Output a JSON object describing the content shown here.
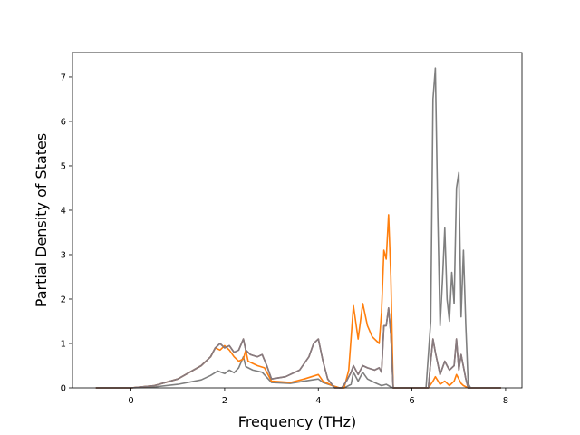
{
  "chart_data": {
    "type": "line",
    "title": "",
    "xlabel": "Frequency (THz)",
    "ylabel": "Partial Density of States",
    "xlim": [
      -1.25,
      8.35
    ],
    "ylim": [
      0,
      7.55
    ],
    "xticks": [
      0,
      2,
      4,
      6,
      8
    ],
    "yticks": [
      0,
      1,
      2,
      3,
      4,
      5,
      6,
      7
    ],
    "grid": false,
    "legend": "none",
    "series": [
      {
        "color": "#7f7f7f",
        "points": [
          [
            -0.75,
            0
          ],
          [
            0,
            0
          ],
          [
            0.5,
            0.02
          ],
          [
            1.0,
            0.08
          ],
          [
            1.5,
            0.18
          ],
          [
            1.7,
            0.28
          ],
          [
            1.85,
            0.38
          ],
          [
            2.0,
            0.32
          ],
          [
            2.1,
            0.4
          ],
          [
            2.2,
            0.34
          ],
          [
            2.3,
            0.45
          ],
          [
            2.4,
            0.7
          ],
          [
            2.45,
            0.48
          ],
          [
            2.6,
            0.4
          ],
          [
            2.8,
            0.35
          ],
          [
            3.0,
            0.12
          ],
          [
            3.4,
            0.1
          ],
          [
            3.7,
            0.15
          ],
          [
            4.0,
            0.2
          ],
          [
            4.1,
            0.12
          ],
          [
            4.3,
            0.05
          ],
          [
            4.45,
            0
          ],
          [
            4.55,
            0
          ],
          [
            4.7,
            0.08
          ],
          [
            4.75,
            0.35
          ],
          [
            4.85,
            0.15
          ],
          [
            4.95,
            0.35
          ],
          [
            5.05,
            0.2
          ],
          [
            5.2,
            0.12
          ],
          [
            5.35,
            0.05
          ],
          [
            5.45,
            0.08
          ],
          [
            5.55,
            0.02
          ],
          [
            5.6,
            0
          ],
          [
            6.3,
            0
          ],
          [
            6.4,
            1.5
          ],
          [
            6.45,
            6.5
          ],
          [
            6.5,
            7.2
          ],
          [
            6.55,
            4.0
          ],
          [
            6.6,
            1.4
          ],
          [
            6.65,
            2.4
          ],
          [
            6.7,
            3.6
          ],
          [
            6.75,
            2.0
          ],
          [
            6.8,
            1.5
          ],
          [
            6.85,
            2.6
          ],
          [
            6.9,
            1.9
          ],
          [
            6.95,
            4.5
          ],
          [
            7.0,
            4.85
          ],
          [
            7.05,
            1.6
          ],
          [
            7.1,
            3.1
          ],
          [
            7.15,
            1.4
          ],
          [
            7.2,
            0.1
          ],
          [
            7.25,
            0
          ],
          [
            7.9,
            0
          ]
        ]
      },
      {
        "color": "#ff7f0e",
        "points": [
          [
            -0.75,
            0
          ],
          [
            0,
            0
          ],
          [
            0.5,
            0.05
          ],
          [
            1.0,
            0.2
          ],
          [
            1.5,
            0.5
          ],
          [
            1.7,
            0.7
          ],
          [
            1.8,
            0.9
          ],
          [
            1.9,
            0.85
          ],
          [
            2.0,
            0.95
          ],
          [
            2.1,
            0.85
          ],
          [
            2.2,
            0.7
          ],
          [
            2.3,
            0.6
          ],
          [
            2.4,
            0.65
          ],
          [
            2.45,
            0.85
          ],
          [
            2.5,
            0.6
          ],
          [
            2.7,
            0.5
          ],
          [
            2.85,
            0.45
          ],
          [
            3.0,
            0.15
          ],
          [
            3.4,
            0.12
          ],
          [
            3.7,
            0.2
          ],
          [
            4.0,
            0.3
          ],
          [
            4.1,
            0.15
          ],
          [
            4.3,
            0.05
          ],
          [
            4.45,
            0
          ],
          [
            4.55,
            0
          ],
          [
            4.65,
            0.4
          ],
          [
            4.75,
            1.85
          ],
          [
            4.85,
            1.1
          ],
          [
            4.95,
            1.9
          ],
          [
            5.05,
            1.4
          ],
          [
            5.15,
            1.15
          ],
          [
            5.25,
            1.05
          ],
          [
            5.3,
            1.0
          ],
          [
            5.35,
            1.7
          ],
          [
            5.4,
            3.1
          ],
          [
            5.45,
            2.9
          ],
          [
            5.5,
            3.9
          ],
          [
            5.55,
            2.5
          ],
          [
            5.6,
            0
          ],
          [
            6.35,
            0
          ],
          [
            6.45,
            0.15
          ],
          [
            6.5,
            0.25
          ],
          [
            6.6,
            0.08
          ],
          [
            6.7,
            0.15
          ],
          [
            6.8,
            0.05
          ],
          [
            6.9,
            0.15
          ],
          [
            6.95,
            0.3
          ],
          [
            7.05,
            0.1
          ],
          [
            7.1,
            0.05
          ],
          [
            7.2,
            0
          ],
          [
            7.9,
            0
          ]
        ]
      },
      {
        "color": "#8c564b",
        "points": [
          [
            -0.75,
            0
          ],
          [
            0,
            0
          ],
          [
            0.5,
            0.05
          ],
          [
            1.0,
            0.2
          ],
          [
            1.5,
            0.5
          ],
          [
            1.7,
            0.7
          ],
          [
            1.8,
            0.9
          ],
          [
            1.9,
            1.0
          ],
          [
            2.0,
            0.9
          ],
          [
            2.1,
            0.95
          ],
          [
            2.2,
            0.8
          ],
          [
            2.3,
            0.85
          ],
          [
            2.4,
            1.1
          ],
          [
            2.45,
            0.85
          ],
          [
            2.55,
            0.75
          ],
          [
            2.7,
            0.7
          ],
          [
            2.8,
            0.75
          ],
          [
            2.9,
            0.5
          ],
          [
            3.0,
            0.2
          ],
          [
            3.3,
            0.25
          ],
          [
            3.6,
            0.4
          ],
          [
            3.8,
            0.7
          ],
          [
            3.9,
            1.0
          ],
          [
            4.0,
            1.1
          ],
          [
            4.1,
            0.6
          ],
          [
            4.2,
            0.2
          ],
          [
            4.35,
            0
          ],
          [
            4.5,
            0
          ],
          [
            4.6,
            0.15
          ],
          [
            4.7,
            0.35
          ],
          [
            4.75,
            0.5
          ],
          [
            4.85,
            0.3
          ],
          [
            4.95,
            0.5
          ],
          [
            5.05,
            0.45
          ],
          [
            5.2,
            0.4
          ],
          [
            5.3,
            0.45
          ],
          [
            5.35,
            0.35
          ],
          [
            5.4,
            1.4
          ],
          [
            5.45,
            1.4
          ],
          [
            5.5,
            1.8
          ],
          [
            5.55,
            1.2
          ],
          [
            5.6,
            0
          ],
          [
            6.35,
            0
          ],
          [
            6.4,
            0.6
          ],
          [
            6.45,
            1.1
          ],
          [
            6.5,
            0.8
          ],
          [
            6.6,
            0.3
          ],
          [
            6.7,
            0.6
          ],
          [
            6.75,
            0.5
          ],
          [
            6.8,
            0.4
          ],
          [
            6.9,
            0.5
          ],
          [
            6.95,
            1.1
          ],
          [
            7.0,
            0.4
          ],
          [
            7.05,
            0.75
          ],
          [
            7.15,
            0.2
          ],
          [
            7.2,
            0
          ],
          [
            7.9,
            0
          ]
        ]
      },
      {
        "color": "#877b7f",
        "points": [
          [
            -0.75,
            0
          ],
          [
            0,
            0
          ],
          [
            0.5,
            0.05
          ],
          [
            1.0,
            0.2
          ],
          [
            1.5,
            0.5
          ],
          [
            1.7,
            0.7
          ],
          [
            1.8,
            0.9
          ],
          [
            1.9,
            1.0
          ],
          [
            2.0,
            0.9
          ],
          [
            2.1,
            0.95
          ],
          [
            2.2,
            0.8
          ],
          [
            2.3,
            0.85
          ],
          [
            2.4,
            1.1
          ],
          [
            2.45,
            0.85
          ],
          [
            2.55,
            0.75
          ],
          [
            2.7,
            0.7
          ],
          [
            2.8,
            0.75
          ],
          [
            2.9,
            0.5
          ],
          [
            3.0,
            0.2
          ],
          [
            3.3,
            0.25
          ],
          [
            3.6,
            0.4
          ],
          [
            3.8,
            0.7
          ],
          [
            3.9,
            1.0
          ],
          [
            4.0,
            1.1
          ],
          [
            4.1,
            0.6
          ],
          [
            4.2,
            0.2
          ],
          [
            4.35,
            0
          ],
          [
            4.5,
            0
          ],
          [
            4.6,
            0.15
          ],
          [
            4.7,
            0.35
          ],
          [
            4.75,
            0.5
          ],
          [
            4.85,
            0.3
          ],
          [
            4.95,
            0.5
          ],
          [
            5.05,
            0.45
          ],
          [
            5.2,
            0.4
          ],
          [
            5.3,
            0.45
          ],
          [
            5.35,
            0.35
          ],
          [
            5.4,
            1.4
          ],
          [
            5.45,
            1.4
          ],
          [
            5.5,
            1.8
          ],
          [
            5.55,
            1.2
          ],
          [
            5.6,
            0
          ],
          [
            6.35,
            0
          ],
          [
            6.4,
            0.6
          ],
          [
            6.45,
            1.1
          ],
          [
            6.5,
            0.8
          ],
          [
            6.6,
            0.3
          ],
          [
            6.7,
            0.6
          ],
          [
            6.75,
            0.5
          ],
          [
            6.8,
            0.4
          ],
          [
            6.9,
            0.5
          ],
          [
            6.95,
            1.1
          ],
          [
            7.0,
            0.4
          ],
          [
            7.05,
            0.75
          ],
          [
            7.15,
            0.2
          ],
          [
            7.2,
            0
          ],
          [
            7.9,
            0
          ]
        ]
      }
    ]
  }
}
